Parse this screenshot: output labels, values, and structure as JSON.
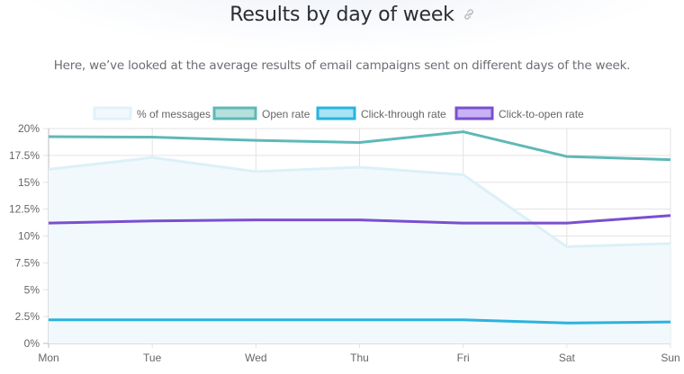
{
  "header": {
    "title": "Results by day of week",
    "link_icon": "link-icon",
    "subtitle": "Here, we’ve looked at the average results of email campaigns sent on different days of the week."
  },
  "colors": {
    "messages_fill": "#f1f9fd",
    "messages_line": "#dcf0f7",
    "open_rate": "#5fb8b8",
    "ctr": "#2ab3de",
    "cto": "#7a4fcf",
    "grid": "#e3e3e3",
    "axis_text": "#666666"
  },
  "chart_data": {
    "type": "line",
    "title": "Results by day of week",
    "xlabel": "",
    "ylabel": "",
    "categories": [
      "Mon",
      "Tue",
      "Wed",
      "Thu",
      "Fri",
      "Sat",
      "Sun"
    ],
    "ylim": [
      0,
      20
    ],
    "y_ticks": [
      "0%",
      "2.5%",
      "5%",
      "7.5%",
      "10%",
      "12.5%",
      "15%",
      "17.5%",
      "20%"
    ],
    "grid": true,
    "legend_position": "top",
    "series": [
      {
        "name": "% of messages",
        "values": [
          16.2,
          17.3,
          16.0,
          16.4,
          15.7,
          9.0,
          9.3
        ],
        "fill": true
      },
      {
        "name": "Open rate",
        "values": [
          19.25,
          19.2,
          18.9,
          18.7,
          19.7,
          17.4,
          17.1
        ]
      },
      {
        "name": "Click-through rate",
        "values": [
          2.2,
          2.2,
          2.2,
          2.2,
          2.2,
          1.9,
          2.0
        ]
      },
      {
        "name": "Click-to-open rate",
        "values": [
          11.2,
          11.4,
          11.5,
          11.5,
          11.2,
          11.2,
          11.9
        ]
      }
    ]
  }
}
